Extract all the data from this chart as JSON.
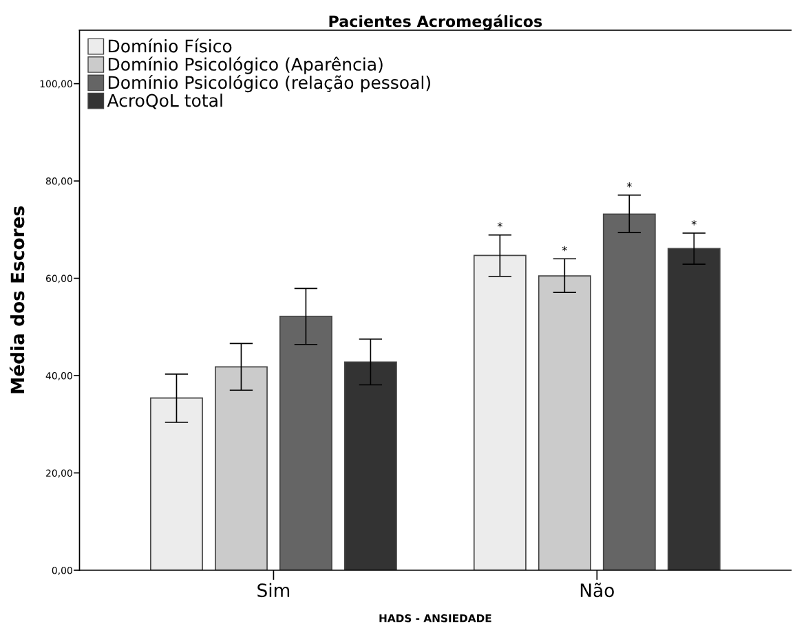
{
  "chart_data": {
    "type": "bar",
    "title": "Pacientes Acromegálicos",
    "xlabel": "HADS - ANSIEDADE",
    "ylabel": "Média dos Escores",
    "categories": [
      "Sim",
      "Não"
    ],
    "series": [
      {
        "name": "Domínio Físico",
        "color": "#ececec",
        "values": [
          35.4,
          64.7
        ],
        "errors": [
          [
            30.4,
            40.3
          ],
          [
            60.4,
            68.9
          ]
        ]
      },
      {
        "name": "Domínio Psicológico (Aparência)",
        "color": "#cbcbcb",
        "values": [
          41.8,
          60.5
        ],
        "errors": [
          [
            37.0,
            46.6
          ],
          [
            57.1,
            64.0
          ]
        ]
      },
      {
        "name": "Domínio Psicológico (relação pessoal)",
        "color": "#656565",
        "values": [
          52.2,
          73.2
        ],
        "errors": [
          [
            46.4,
            57.9
          ],
          [
            69.4,
            77.1
          ]
        ]
      },
      {
        "name": "AcroQoL total",
        "color": "#333333",
        "values": [
          42.8,
          66.1
        ],
        "errors": [
          [
            38.1,
            47.5
          ],
          [
            62.9,
            69.3
          ]
        ]
      }
    ],
    "annotations": [
      "*",
      "*",
      "*",
      "*"
    ],
    "ylim": [
      0,
      111
    ],
    "yticks": [
      {
        "value": 0,
        "label": "0,00"
      },
      {
        "value": 20,
        "label": "20,00"
      },
      {
        "value": 40,
        "label": "40,00"
      },
      {
        "value": 60,
        "label": "60,00"
      },
      {
        "value": 80,
        "label": "80,00"
      },
      {
        "value": 100,
        "label": "100,00"
      }
    ],
    "legend": "top left",
    "grid": false
  }
}
